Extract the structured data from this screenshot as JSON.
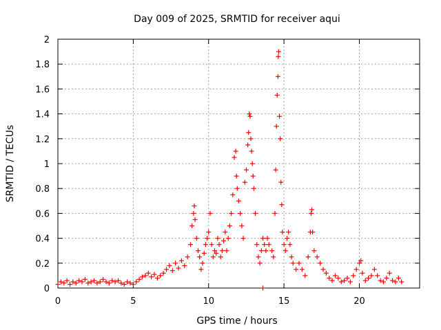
{
  "chart_data": {
    "type": "scatter",
    "title": "Day 009 of 2025, SRMTID for receiver aqui",
    "xlabel": "GPS time / hours",
    "ylabel": "SRMTID / TECUs",
    "xlim": [
      0,
      24
    ],
    "ylim": [
      0,
      2
    ],
    "xticks": [
      0,
      5,
      10,
      15,
      20
    ],
    "yticks": [
      0,
      0.2,
      0.4,
      0.6,
      0.8,
      1,
      1.2,
      1.4,
      1.6,
      1.8,
      2
    ],
    "xtick_labels": [
      "0",
      "5",
      "10",
      "15",
      "20"
    ],
    "ytick_labels": [
      "0",
      "0.2",
      "0.4",
      "0.6",
      "0.8",
      "1",
      "1.2",
      "1.4",
      "1.6",
      "1.8",
      "2"
    ],
    "grid": true,
    "marker": "+",
    "marker_color": "#ff0000",
    "series": [
      {
        "name": "SRMTID",
        "points": [
          [
            0.0,
            0.03
          ],
          [
            0.2,
            0.05
          ],
          [
            0.4,
            0.04
          ],
          [
            0.6,
            0.06
          ],
          [
            0.8,
            0.03
          ],
          [
            1.0,
            0.05
          ],
          [
            1.2,
            0.04
          ],
          [
            1.4,
            0.06
          ],
          [
            1.6,
            0.05
          ],
          [
            1.8,
            0.07
          ],
          [
            2.0,
            0.04
          ],
          [
            2.2,
            0.05
          ],
          [
            2.4,
            0.06
          ],
          [
            2.6,
            0.04
          ],
          [
            2.8,
            0.05
          ],
          [
            3.0,
            0.07
          ],
          [
            3.2,
            0.05
          ],
          [
            3.4,
            0.04
          ],
          [
            3.6,
            0.06
          ],
          [
            3.8,
            0.05
          ],
          [
            4.0,
            0.06
          ],
          [
            4.2,
            0.04
          ],
          [
            4.4,
            0.03
          ],
          [
            4.6,
            0.05
          ],
          [
            4.8,
            0.04
          ],
          [
            5.0,
            0.03
          ],
          [
            5.2,
            0.05
          ],
          [
            5.4,
            0.07
          ],
          [
            5.6,
            0.09
          ],
          [
            5.8,
            0.1
          ],
          [
            6.0,
            0.12
          ],
          [
            6.2,
            0.09
          ],
          [
            6.4,
            0.11
          ],
          [
            6.6,
            0.08
          ],
          [
            6.8,
            0.1
          ],
          [
            7.0,
            0.12
          ],
          [
            7.2,
            0.15
          ],
          [
            7.4,
            0.18
          ],
          [
            7.6,
            0.14
          ],
          [
            7.8,
            0.2
          ],
          [
            8.0,
            0.16
          ],
          [
            8.2,
            0.22
          ],
          [
            8.4,
            0.18
          ],
          [
            8.6,
            0.25
          ],
          [
            8.8,
            0.35
          ],
          [
            8.9,
            0.5
          ],
          [
            9.0,
            0.6
          ],
          [
            9.05,
            0.66
          ],
          [
            9.1,
            0.55
          ],
          [
            9.2,
            0.4
          ],
          [
            9.3,
            0.3
          ],
          [
            9.4,
            0.25
          ],
          [
            9.5,
            0.15
          ],
          [
            9.6,
            0.2
          ],
          [
            9.7,
            0.28
          ],
          [
            9.8,
            0.35
          ],
          [
            9.9,
            0.4
          ],
          [
            10.0,
            0.45
          ],
          [
            10.1,
            0.6
          ],
          [
            10.2,
            0.35
          ],
          [
            10.3,
            0.25
          ],
          [
            10.4,
            0.3
          ],
          [
            10.5,
            0.28
          ],
          [
            10.6,
            0.4
          ],
          [
            10.7,
            0.35
          ],
          [
            10.8,
            0.25
          ],
          [
            10.9,
            0.3
          ],
          [
            11.0,
            0.38
          ],
          [
            11.1,
            0.45
          ],
          [
            11.2,
            0.3
          ],
          [
            11.3,
            0.4
          ],
          [
            11.4,
            0.5
          ],
          [
            11.5,
            0.6
          ],
          [
            11.6,
            0.75
          ],
          [
            11.7,
            1.05
          ],
          [
            11.8,
            1.1
          ],
          [
            11.85,
            0.9
          ],
          [
            11.9,
            0.8
          ],
          [
            12.0,
            0.7
          ],
          [
            12.1,
            0.6
          ],
          [
            12.2,
            0.5
          ],
          [
            12.3,
            0.4
          ],
          [
            12.4,
            0.85
          ],
          [
            12.5,
            0.95
          ],
          [
            12.6,
            1.15
          ],
          [
            12.65,
            1.25
          ],
          [
            12.7,
            1.4
          ],
          [
            12.75,
            1.38
          ],
          [
            12.8,
            1.2
          ],
          [
            12.85,
            1.1
          ],
          [
            12.9,
            1.0
          ],
          [
            12.95,
            0.9
          ],
          [
            13.0,
            0.8
          ],
          [
            13.1,
            0.6
          ],
          [
            13.2,
            0.35
          ],
          [
            13.3,
            0.25
          ],
          [
            13.4,
            0.2
          ],
          [
            13.5,
            0.3
          ],
          [
            13.6,
            0.4
          ],
          [
            13.7,
            0.35
          ],
          [
            13.8,
            0.3
          ],
          [
            13.9,
            0.4
          ],
          [
            14.0,
            0.35
          ],
          [
            14.2,
            0.3
          ],
          [
            14.3,
            0.25
          ],
          [
            14.4,
            0.6
          ],
          [
            14.45,
            0.95
          ],
          [
            14.5,
            1.3
          ],
          [
            14.55,
            1.55
          ],
          [
            14.6,
            1.7
          ],
          [
            14.62,
            1.86
          ],
          [
            14.65,
            1.9
          ],
          [
            14.7,
            1.38
          ],
          [
            14.75,
            1.2
          ],
          [
            14.8,
            0.85
          ],
          [
            14.85,
            0.67
          ],
          [
            14.9,
            0.45
          ],
          [
            15.0,
            0.35
          ],
          [
            15.1,
            0.3
          ],
          [
            15.2,
            0.4
          ],
          [
            15.3,
            0.45
          ],
          [
            15.4,
            0.35
          ],
          [
            15.5,
            0.25
          ],
          [
            15.6,
            0.2
          ],
          [
            15.8,
            0.15
          ],
          [
            16.0,
            0.2
          ],
          [
            16.2,
            0.15
          ],
          [
            16.4,
            0.1
          ],
          [
            16.6,
            0.25
          ],
          [
            16.75,
            0.45
          ],
          [
            16.8,
            0.6
          ],
          [
            16.85,
            0.63
          ],
          [
            16.9,
            0.45
          ],
          [
            17.0,
            0.3
          ],
          [
            17.2,
            0.25
          ],
          [
            17.4,
            0.2
          ],
          [
            17.6,
            0.15
          ],
          [
            17.8,
            0.12
          ],
          [
            18.0,
            0.08
          ],
          [
            18.2,
            0.06
          ],
          [
            18.4,
            0.1
          ],
          [
            18.6,
            0.08
          ],
          [
            18.8,
            0.05
          ],
          [
            19.0,
            0.06
          ],
          [
            19.2,
            0.08
          ],
          [
            19.4,
            0.05
          ],
          [
            19.6,
            0.1
          ],
          [
            19.8,
            0.15
          ],
          [
            20.0,
            0.2
          ],
          [
            20.1,
            0.22
          ],
          [
            20.2,
            0.12
          ],
          [
            20.4,
            0.06
          ],
          [
            20.6,
            0.08
          ],
          [
            20.8,
            0.1
          ],
          [
            21.0,
            0.15
          ],
          [
            21.2,
            0.1
          ],
          [
            21.4,
            0.06
          ],
          [
            21.6,
            0.05
          ],
          [
            21.8,
            0.08
          ],
          [
            22.0,
            0.12
          ],
          [
            22.2,
            0.06
          ],
          [
            22.4,
            0.05
          ],
          [
            22.6,
            0.08
          ],
          [
            22.8,
            0.05
          ],
          [
            13.6,
            0.0
          ]
        ]
      }
    ]
  }
}
